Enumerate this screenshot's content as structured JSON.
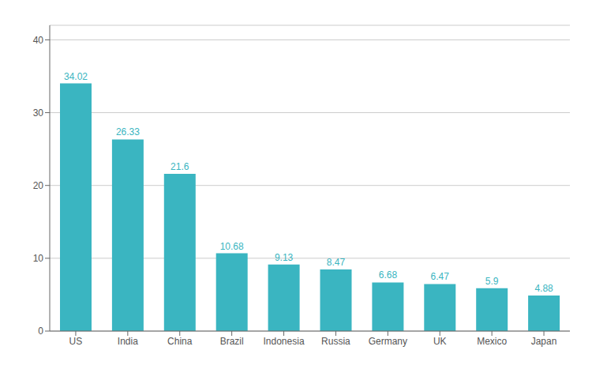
{
  "chart_data": {
    "type": "bar",
    "categories": [
      "US",
      "India",
      "China",
      "Brazil",
      "Indonesia",
      "Russia",
      "Germany",
      "UK",
      "Mexico",
      "Japan"
    ],
    "values": [
      34.02,
      26.33,
      21.6,
      10.68,
      9.13,
      8.47,
      6.68,
      6.47,
      5.9,
      4.88
    ],
    "color": "#3ab5c1",
    "ylim": [
      0,
      42
    ],
    "yticks": [
      0,
      10,
      20,
      30,
      40
    ],
    "grid": true,
    "data_labels": true
  }
}
